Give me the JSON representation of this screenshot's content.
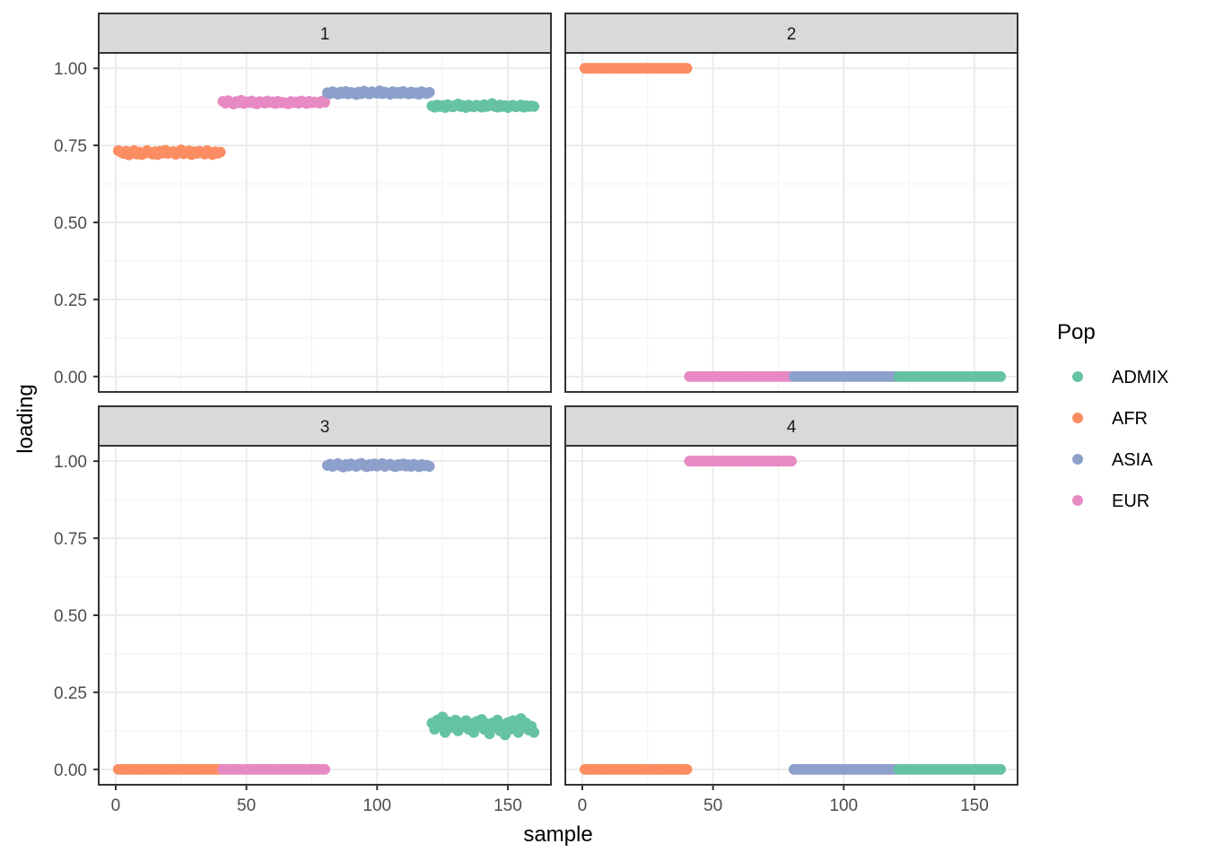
{
  "chart_data": {
    "type": "scatter",
    "xlabel": "sample",
    "ylabel": "loading",
    "xlim": [
      0,
      160
    ],
    "ylim": [
      0,
      1
    ],
    "x_ticks": [
      0,
      50,
      100,
      150
    ],
    "x_tick_labels": [
      "0",
      "50",
      "100",
      "150"
    ],
    "y_ticks": [
      0,
      0.25,
      0.5,
      0.75,
      1
    ],
    "y_tick_labels": [
      "0.00",
      "0.25",
      "0.50",
      "0.75",
      "1.00"
    ],
    "grid": true,
    "facet_layout": "2x2",
    "legend": {
      "title": "Pop",
      "position": "right",
      "entries": [
        {
          "name": "ADMIX",
          "color": "#66C2A5"
        },
        {
          "name": "AFR",
          "color": "#FC8D62"
        },
        {
          "name": "ASIA",
          "color": "#8DA0CB"
        },
        {
          "name": "EUR",
          "color": "#E78AC3"
        }
      ]
    },
    "groups": [
      {
        "name": "AFR",
        "x_range": [
          1,
          40
        ]
      },
      {
        "name": "EUR",
        "x_range": [
          41,
          80
        ]
      },
      {
        "name": "ASIA",
        "x_range": [
          81,
          120
        ]
      },
      {
        "name": "ADMIX",
        "x_range": [
          121,
          160
        ]
      }
    ],
    "facets": [
      {
        "label": "1",
        "series": [
          {
            "name": "AFR",
            "values": [
              0.733,
              0.728,
              0.724,
              0.731,
              0.719,
              0.726,
              0.733,
              0.722,
              0.728,
              0.72,
              0.724,
              0.733,
              0.727,
              0.722,
              0.729,
              0.72,
              0.731,
              0.725,
              0.734,
              0.724,
              0.727,
              0.73,
              0.721,
              0.728,
              0.735,
              0.723,
              0.726,
              0.732,
              0.72,
              0.729,
              0.724,
              0.731,
              0.727,
              0.722,
              0.733,
              0.726,
              0.72,
              0.729,
              0.724,
              0.728
            ]
          },
          {
            "name": "EUR",
            "values": [
              0.893,
              0.887,
              0.895,
              0.889,
              0.884,
              0.892,
              0.888,
              0.896,
              0.886,
              0.891,
              0.889,
              0.894,
              0.887,
              0.885,
              0.892,
              0.89,
              0.887,
              0.894,
              0.889,
              0.891,
              0.886,
              0.893,
              0.888,
              0.89,
              0.887,
              0.885,
              0.892,
              0.889,
              0.891,
              0.887,
              0.894,
              0.89,
              0.886,
              0.893,
              0.888,
              0.891,
              0.889,
              0.887,
              0.894,
              0.89
            ]
          },
          {
            "name": "ASIA",
            "values": [
              0.921,
              0.918,
              0.924,
              0.92,
              0.916,
              0.923,
              0.919,
              0.925,
              0.917,
              0.922,
              0.92,
              0.915,
              0.923,
              0.918,
              0.926,
              0.92,
              0.917,
              0.924,
              0.921,
              0.919,
              0.927,
              0.918,
              0.923,
              0.92,
              0.916,
              0.924,
              0.919,
              0.922,
              0.918,
              0.925,
              0.92,
              0.917,
              0.923,
              0.919,
              0.921,
              0.916,
              0.924,
              0.92,
              0.918,
              0.922
            ]
          },
          {
            "name": "ADMIX",
            "values": [
              0.878,
              0.874,
              0.881,
              0.876,
              0.879,
              0.873,
              0.882,
              0.877,
              0.875,
              0.88,
              0.884,
              0.876,
              0.879,
              0.873,
              0.881,
              0.877,
              0.875,
              0.88,
              0.878,
              0.874,
              0.882,
              0.876,
              0.879,
              0.886,
              0.877,
              0.874,
              0.881,
              0.876,
              0.879,
              0.873,
              0.878,
              0.88,
              0.875,
              0.877,
              0.881,
              0.874,
              0.879,
              0.876,
              0.878,
              0.876
            ]
          }
        ]
      },
      {
        "label": "2",
        "series": [
          {
            "name": "AFR",
            "values": [
              1,
              1,
              1,
              1,
              1,
              1,
              1,
              1,
              1,
              1,
              1,
              1,
              1,
              1,
              1,
              1,
              1,
              1,
              1,
              1,
              1,
              1,
              1,
              1,
              1,
              1,
              1,
              1,
              1,
              1,
              1,
              1,
              1,
              1,
              1,
              1,
              1,
              1,
              1,
              1
            ]
          },
          {
            "name": "EUR",
            "values": [
              0,
              0,
              0,
              0,
              0,
              0,
              0,
              0,
              0,
              0,
              0,
              0,
              0,
              0,
              0,
              0,
              0,
              0,
              0,
              0,
              0,
              0,
              0,
              0,
              0,
              0,
              0,
              0,
              0,
              0,
              0,
              0,
              0,
              0,
              0,
              0,
              0,
              0,
              0,
              0
            ]
          },
          {
            "name": "ASIA",
            "values": [
              0,
              0,
              0,
              0,
              0,
              0,
              0,
              0,
              0,
              0,
              0,
              0,
              0,
              0,
              0,
              0,
              0,
              0,
              0,
              0,
              0,
              0,
              0,
              0,
              0,
              0,
              0,
              0,
              0,
              0,
              0,
              0,
              0,
              0,
              0,
              0,
              0,
              0,
              0,
              0
            ]
          },
          {
            "name": "ADMIX",
            "values": [
              0,
              0,
              0,
              0,
              0,
              0,
              0,
              0,
              0,
              0,
              0,
              0,
              0,
              0,
              0,
              0,
              0,
              0,
              0,
              0,
              0,
              0,
              0,
              0,
              0,
              0,
              0,
              0,
              0,
              0,
              0,
              0,
              0,
              0,
              0,
              0,
              0,
              0,
              0,
              0
            ]
          }
        ]
      },
      {
        "label": "3",
        "series": [
          {
            "name": "AFR",
            "values": [
              0,
              0,
              0,
              0,
              0,
              0,
              0,
              0,
              0,
              0,
              0,
              0,
              0,
              0,
              0,
              0,
              0,
              0,
              0,
              0,
              0,
              0,
              0,
              0,
              0,
              0,
              0,
              0,
              0,
              0,
              0,
              0,
              0,
              0,
              0,
              0,
              0,
              0,
              0,
              0
            ]
          },
          {
            "name": "EUR",
            "values": [
              0,
              0,
              0,
              0,
              0,
              0,
              0,
              0,
              0,
              0,
              0,
              0,
              0,
              0,
              0,
              0,
              0,
              0,
              0,
              0,
              0,
              0,
              0,
              0,
              0,
              0,
              0,
              0,
              0,
              0,
              0,
              0,
              0,
              0,
              0,
              0,
              0,
              0,
              0,
              0
            ]
          },
          {
            "name": "ASIA",
            "values": [
              0.986,
              0.99,
              0.983,
              0.988,
              0.992,
              0.985,
              0.981,
              0.989,
              0.984,
              0.991,
              0.987,
              0.983,
              0.99,
              0.993,
              0.986,
              0.982,
              0.989,
              0.985,
              0.991,
              0.984,
              0.988,
              0.992,
              0.983,
              0.987,
              0.99,
              0.985,
              0.982,
              0.989,
              0.986,
              0.991,
              0.984,
              0.988,
              0.983,
              0.99,
              0.986,
              0.982,
              0.989,
              0.985,
              0.987,
              0.983
            ]
          },
          {
            "name": "ADMIX",
            "values": [
              0.15,
              0.13,
              0.16,
              0.14,
              0.17,
              0.12,
              0.155,
              0.135,
              0.145,
              0.16,
              0.125,
              0.15,
              0.14,
              0.158,
              0.13,
              0.148,
              0.12,
              0.155,
              0.14,
              0.162,
              0.13,
              0.148,
              0.115,
              0.15,
              0.138,
              0.16,
              0.125,
              0.145,
              0.112,
              0.152,
              0.13,
              0.158,
              0.14,
              0.12,
              0.165,
              0.135,
              0.15,
              0.128,
              0.14,
              0.12
            ]
          }
        ]
      },
      {
        "label": "4",
        "series": [
          {
            "name": "AFR",
            "values": [
              0,
              0,
              0,
              0,
              0,
              0,
              0,
              0,
              0,
              0,
              0,
              0,
              0,
              0,
              0,
              0,
              0,
              0,
              0,
              0,
              0,
              0,
              0,
              0,
              0,
              0,
              0,
              0,
              0,
              0,
              0,
              0,
              0,
              0,
              0,
              0,
              0,
              0,
              0,
              0
            ]
          },
          {
            "name": "EUR",
            "values": [
              1,
              1,
              1,
              1,
              1,
              1,
              1,
              1,
              1,
              1,
              1,
              1,
              1,
              1,
              1,
              1,
              1,
              1,
              1,
              1,
              1,
              1,
              1,
              1,
              1,
              1,
              1,
              1,
              1,
              1,
              1,
              1,
              1,
              1,
              1,
              1,
              1,
              1,
              1,
              1
            ]
          },
          {
            "name": "ASIA",
            "values": [
              0,
              0,
              0,
              0,
              0,
              0,
              0,
              0,
              0,
              0,
              0,
              0,
              0,
              0,
              0,
              0,
              0,
              0,
              0,
              0,
              0,
              0,
              0,
              0,
              0,
              0,
              0,
              0,
              0,
              0,
              0,
              0,
              0,
              0,
              0,
              0,
              0,
              0,
              0,
              0
            ]
          },
          {
            "name": "ADMIX",
            "values": [
              0,
              0,
              0,
              0,
              0,
              0,
              0,
              0,
              0,
              0,
              0,
              0,
              0,
              0,
              0,
              0,
              0,
              0,
              0,
              0,
              0,
              0,
              0,
              0,
              0,
              0,
              0,
              0,
              0,
              0,
              0,
              0,
              0,
              0,
              0,
              0,
              0,
              0,
              0,
              0
            ]
          }
        ]
      }
    ]
  }
}
